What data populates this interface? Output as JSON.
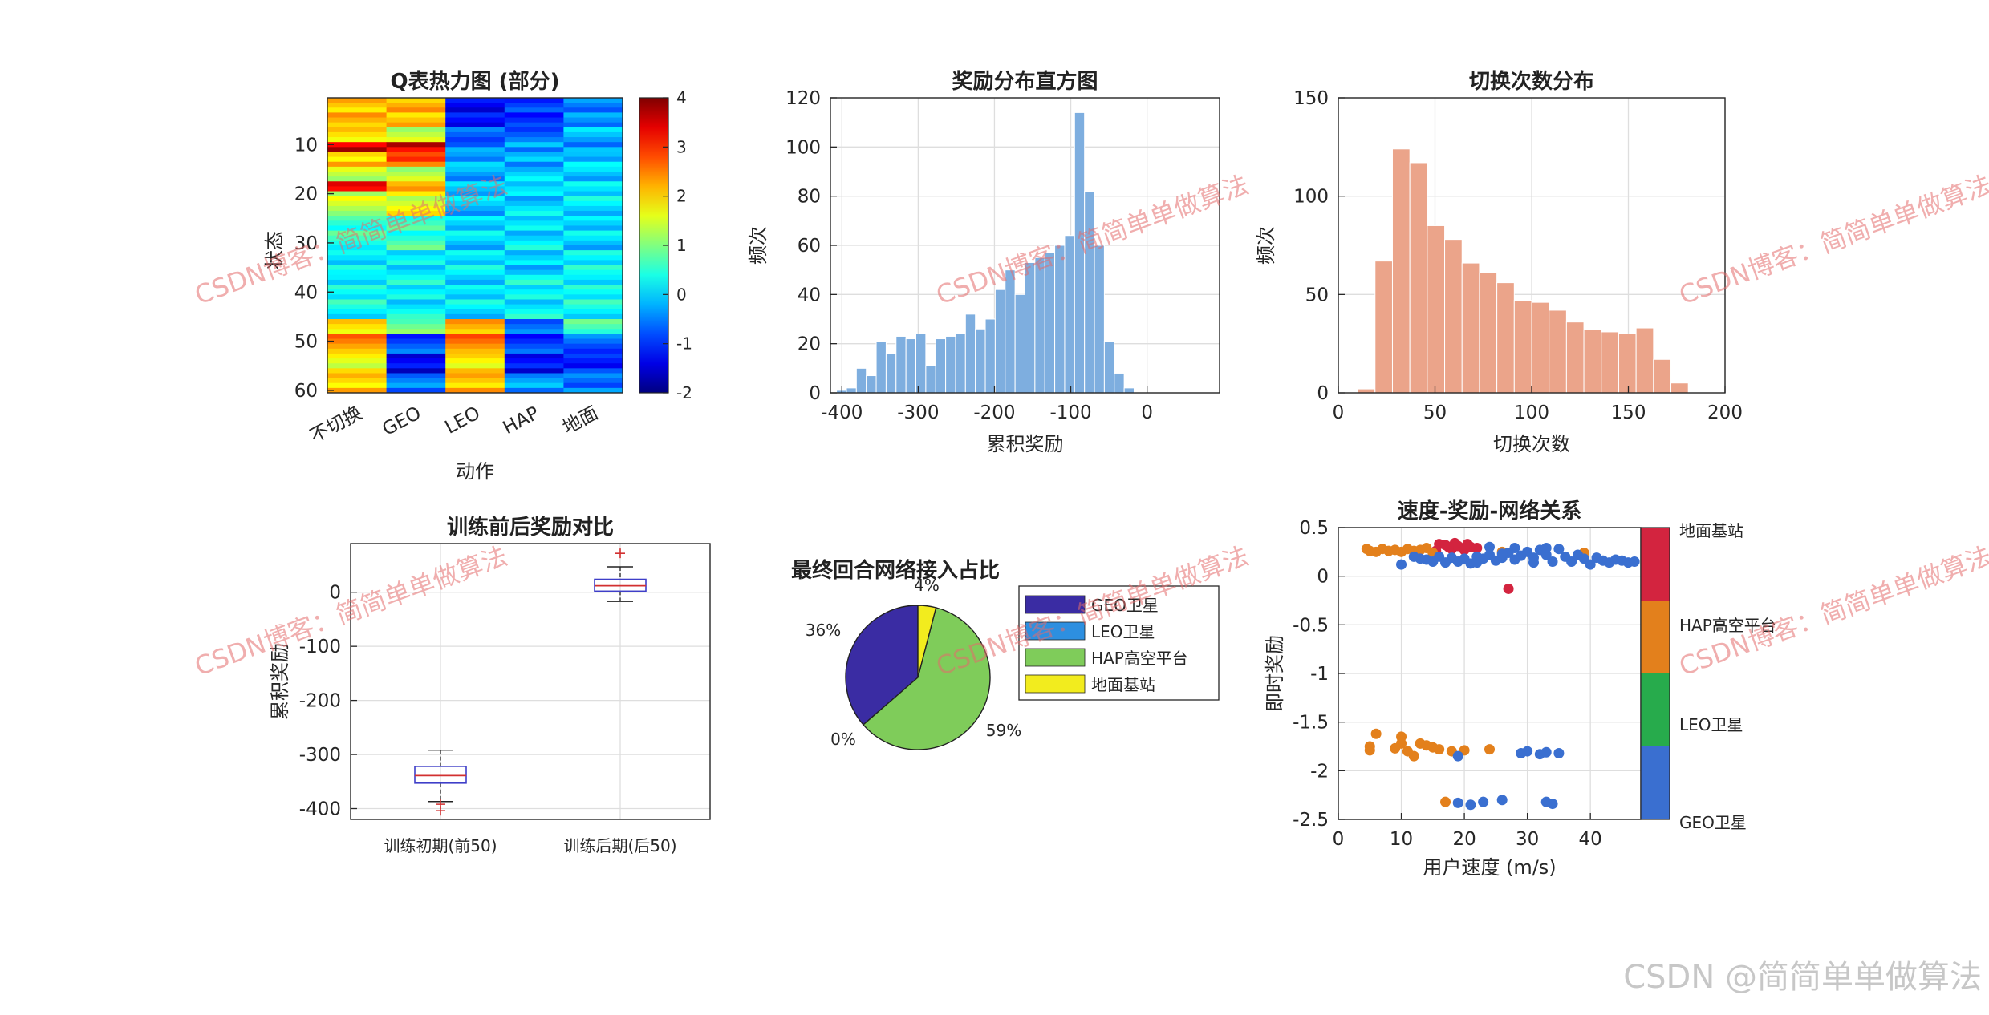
{
  "chart_data": [
    {
      "type": "heatmap",
      "title": "Q表热力图 (部分)",
      "xlabel": "动作",
      "ylabel": "状态",
      "x_categories": [
        "不切换",
        "GEO",
        "LEO",
        "HAP",
        "地面"
      ],
      "ylim": [
        1,
        60
      ],
      "yticks": [
        10,
        20,
        30,
        40,
        50,
        60
      ],
      "colorbar": {
        "min": -2,
        "max": 4,
        "ticks": [
          4,
          3,
          2,
          1,
          0,
          -1,
          -2
        ],
        "colormap": "jet"
      },
      "bands": [
        {
          "rows": [
            1,
            6
          ],
          "values": [
            2.2,
            2.1,
            -1.2,
            -1.0,
            -0.4
          ]
        },
        {
          "rows": [
            7,
            9
          ],
          "values": [
            1.8,
            1.5,
            -0.8,
            -0.6,
            -0.2
          ]
        },
        {
          "rows": [
            10,
            11
          ],
          "values": [
            3.6,
            3.4,
            -0.4,
            -0.4,
            -0.3
          ]
        },
        {
          "rows": [
            12,
            14
          ],
          "values": [
            2.0,
            2.8,
            -0.3,
            -0.2,
            -0.1
          ]
        },
        {
          "rows": [
            15,
            17
          ],
          "values": [
            1.5,
            1.2,
            -0.2,
            -0.1,
            0.0
          ]
        },
        {
          "rows": [
            18,
            19
          ],
          "values": [
            3.2,
            2.4,
            -0.1,
            0.1,
            0.1
          ]
        },
        {
          "rows": [
            20,
            24
          ],
          "values": [
            1.4,
            1.6,
            -0.1,
            0.0,
            0.1
          ]
        },
        {
          "rows": [
            25,
            31
          ],
          "values": [
            0.5,
            0.6,
            0.0,
            0.1,
            0.0
          ]
        },
        {
          "rows": [
            32,
            36
          ],
          "values": [
            0.1,
            0.2,
            0.1,
            0.0,
            0.2
          ]
        },
        {
          "rows": [
            37,
            45
          ],
          "values": [
            0.3,
            0.2,
            0.1,
            0.2,
            0.3
          ]
        },
        {
          "rows": [
            46,
            48
          ],
          "values": [
            1.9,
            0.9,
            2.2,
            -0.6,
            0.7
          ]
        },
        {
          "rows": [
            49,
            52
          ],
          "values": [
            2.4,
            -0.8,
            2.5,
            -0.9,
            -0.7
          ]
        },
        {
          "rows": [
            53,
            56
          ],
          "values": [
            1.6,
            -1.3,
            1.8,
            -1.2,
            -1.1
          ]
        },
        {
          "rows": [
            57,
            60
          ],
          "values": [
            2.1,
            -0.6,
            2.2,
            -0.4,
            -0.5
          ]
        }
      ]
    },
    {
      "type": "bar",
      "title": "奖励分布直方图",
      "xlabel": "累积奖励",
      "ylabel": "频次",
      "xlim": [
        -415,
        95
      ],
      "ylim": [
        0,
        120
      ],
      "xticks": [
        -400,
        -300,
        -200,
        -100,
        0
      ],
      "yticks": [
        0,
        20,
        40,
        60,
        80,
        100,
        120
      ],
      "bin_width": 13,
      "bin_start": -407,
      "values": [
        1,
        2,
        10,
        7,
        21,
        16,
        23,
        22,
        24,
        11,
        22,
        23,
        24,
        32,
        26,
        30,
        42,
        50,
        40,
        53,
        55,
        57,
        60,
        64,
        114,
        82,
        60,
        21,
        8,
        2
      ],
      "color": "#7eaedf"
    },
    {
      "type": "bar",
      "title": "切换次数分布",
      "xlabel": "切换次数",
      "ylabel": "频次",
      "xlim": [
        0,
        200
      ],
      "ylim": [
        0,
        150
      ],
      "xticks": [
        0,
        50,
        100,
        150,
        200
      ],
      "yticks": [
        0,
        50,
        100,
        150
      ],
      "bin_width": 9,
      "bin_start": 10,
      "values": [
        2,
        67,
        124,
        117,
        85,
        78,
        66,
        61,
        56,
        47,
        46,
        42,
        36,
        32,
        31,
        30,
        33,
        17,
        5
      ],
      "color": "#eba48a"
    },
    {
      "type": "box",
      "title": "训练前后奖励对比",
      "ylabel": "累积奖励",
      "ylim": [
        -420,
        90
      ],
      "yticks": [
        0,
        -100,
        -200,
        -300,
        -400
      ],
      "categories": [
        "训练初期(前50)",
        "训练后期(后50)"
      ],
      "boxes": [
        {
          "min": -387,
          "q1": -353,
          "median": -339,
          "q3": -322,
          "max": -292,
          "outliers": [
            -392,
            -404
          ]
        },
        {
          "min": -17,
          "q1": 2,
          "median": 12,
          "q3": 24,
          "max": 47,
          "outliers": [
            72
          ]
        }
      ]
    },
    {
      "type": "pie",
      "title": "最终回合网络接入占比",
      "labels": [
        "GEO卫星",
        "LEO卫星",
        "HAP高空平台",
        "地面基站"
      ],
      "values": [
        36,
        0,
        59,
        4
      ],
      "percent_labels": [
        "36%",
        "0%",
        "59%",
        "4%"
      ],
      "colors": [
        "#3a2ca3",
        "#2d8fe0",
        "#7fcc5a",
        "#f2ec1e"
      ]
    },
    {
      "type": "scatter",
      "title": "速度-奖励-网络关系",
      "xlabel": "用户速度 (m/s)",
      "ylabel": "即时奖励",
      "xlim": [
        0,
        48
      ],
      "ylim": [
        -2.5,
        0.5
      ],
      "xticks": [
        0,
        10,
        20,
        30,
        40
      ],
      "yticks": [
        0.5,
        0,
        -0.5,
        -1,
        -1.5,
        -2,
        -2.5
      ],
      "colorbar_labels": [
        "地面基站",
        "HAP高空平台",
        "LEO卫星",
        "GEO卫星"
      ],
      "colorbar_colors": [
        "#d3243f",
        "#e3801c",
        "#27ab4c",
        "#3a6fd0"
      ],
      "series": [
        {
          "name": "地面基站",
          "color": "#d3243f",
          "points": [
            [
              16,
              0.33
            ],
            [
              17,
              0.32
            ],
            [
              18,
              0.28
            ],
            [
              19,
              0.31
            ],
            [
              20,
              0.27
            ],
            [
              21,
              0.3
            ],
            [
              15.5,
              0.26
            ],
            [
              22,
              0.29
            ],
            [
              18.5,
              0.34
            ],
            [
              27,
              -0.13
            ],
            [
              17.5,
              0.3
            ],
            [
              20.5,
              0.33
            ]
          ]
        },
        {
          "name": "HAP高空平台",
          "color": "#e3801c",
          "points": [
            [
              4.5,
              0.28
            ],
            [
              5,
              0.26
            ],
            [
              6,
              0.25
            ],
            [
              7,
              0.28
            ],
            [
              8,
              0.26
            ],
            [
              9,
              0.27
            ],
            [
              10,
              0.25
            ],
            [
              11,
              0.28
            ],
            [
              12,
              0.26
            ],
            [
              13,
              0.27
            ],
            [
              14,
              0.29
            ],
            [
              15,
              0.24
            ],
            [
              26,
              0.25
            ],
            [
              39,
              0.24
            ],
            [
              6,
              -1.62
            ],
            [
              5,
              -1.75
            ],
            [
              5,
              -1.79
            ],
            [
              9,
              -1.77
            ],
            [
              10,
              -1.65
            ],
            [
              10,
              -1.72
            ],
            [
              11,
              -1.8
            ],
            [
              12,
              -1.85
            ],
            [
              13,
              -1.72
            ],
            [
              14,
              -1.74
            ],
            [
              15,
              -1.76
            ],
            [
              16,
              -1.78
            ],
            [
              18,
              -1.8
            ],
            [
              20,
              -1.79
            ],
            [
              24,
              -1.78
            ],
            [
              17,
              -2.32
            ]
          ]
        },
        {
          "name": "GEO卫星",
          "color": "#3a6fd0",
          "points": [
            [
              10,
              0.12
            ],
            [
              12,
              0.2
            ],
            [
              13,
              0.18
            ],
            [
              14,
              0.17
            ],
            [
              15,
              0.15
            ],
            [
              16,
              0.2
            ],
            [
              17,
              0.14
            ],
            [
              18,
              0.19
            ],
            [
              19,
              0.15
            ],
            [
              20,
              0.18
            ],
            [
              21,
              0.13
            ],
            [
              22,
              0.2
            ],
            [
              23,
              0.18
            ],
            [
              24,
              0.22
            ],
            [
              25,
              0.16
            ],
            [
              26,
              0.19
            ],
            [
              27,
              0.24
            ],
            [
              28,
              0.17
            ],
            [
              29,
              0.21
            ],
            [
              30,
              0.25
            ],
            [
              31,
              0.19
            ],
            [
              32,
              0.27
            ],
            [
              33,
              0.22
            ],
            [
              34,
              0.15
            ],
            [
              35,
              0.28
            ],
            [
              36,
              0.2
            ],
            [
              37,
              0.15
            ],
            [
              38,
              0.22
            ],
            [
              39,
              0.18
            ],
            [
              40,
              0.12
            ],
            [
              41,
              0.19
            ],
            [
              42,
              0.16
            ],
            [
              43,
              0.14
            ],
            [
              44,
              0.17
            ],
            [
              45,
              0.16
            ],
            [
              46,
              0.14
            ],
            [
              47,
              0.15
            ],
            [
              24,
              0.3
            ],
            [
              28,
              0.29
            ],
            [
              31,
              0.14
            ],
            [
              33,
              0.29
            ],
            [
              26,
              0.23
            ],
            [
              22,
              0.14
            ],
            [
              19,
              -1.85
            ],
            [
              29,
              -1.82
            ],
            [
              30,
              -1.8
            ],
            [
              32,
              -1.83
            ],
            [
              33,
              -1.81
            ],
            [
              35,
              -1.82
            ],
            [
              19,
              -2.33
            ],
            [
              21,
              -2.35
            ],
            [
              23,
              -2.32
            ],
            [
              26,
              -2.3
            ],
            [
              33,
              -2.32
            ],
            [
              34,
              -2.34
            ]
          ]
        }
      ]
    }
  ],
  "watermarks": [
    "CSDN博客：简简单单做算法",
    "CSDN博客：简简单单做算法",
    "CSDN博客：简简单单做算法",
    "CSDN博客：简简单单做算法",
    "CSDN博客：简简单单做算法",
    "CSDN博客：简简单单做算法"
  ],
  "footer": "CSDN @简简单单做算法"
}
